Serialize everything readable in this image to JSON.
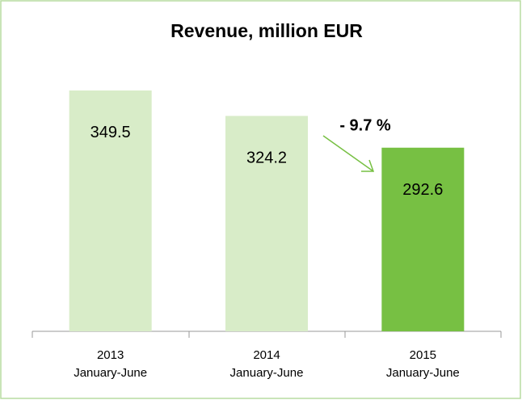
{
  "chart_data": {
    "type": "bar",
    "title": "Revenue, million EUR",
    "categories": [
      [
        "2013",
        "January-June"
      ],
      [
        "2014",
        "January-June"
      ],
      [
        "2015",
        "January-June"
      ]
    ],
    "values": [
      349.5,
      324.2,
      292.6
    ],
    "colors": [
      "#d8ecc8",
      "#d8ecc8",
      "#77c043"
    ],
    "ylim": [
      110,
      380
    ],
    "annotation": "- 9.7 %"
  }
}
